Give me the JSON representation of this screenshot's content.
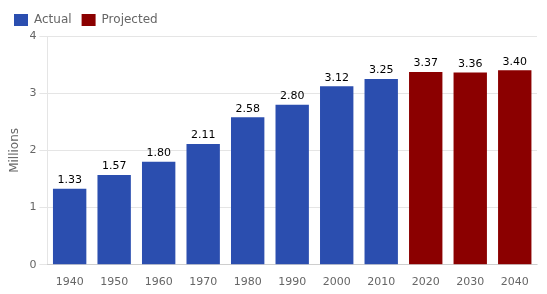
{
  "chart_data": {
    "type": "bar",
    "categories": [
      "1940",
      "1950",
      "1960",
      "1970",
      "1980",
      "1990",
      "2000",
      "2010",
      "2020",
      "2030",
      "2040"
    ],
    "series": [
      {
        "name": "Actual",
        "color": "#2B4EAF",
        "values": [
          1.33,
          1.57,
          1.8,
          2.11,
          2.58,
          2.8,
          3.12,
          3.25,
          null,
          null,
          null
        ],
        "value_labels": [
          "1.33",
          "1.57",
          "1.80",
          "2.11",
          "2.58",
          "2.80",
          "3.12",
          "3.25",
          null,
          null,
          null
        ]
      },
      {
        "name": "Projected",
        "color": "#8B0000",
        "values": [
          null,
          null,
          null,
          null,
          null,
          null,
          null,
          null,
          3.37,
          3.36,
          3.4
        ],
        "value_labels": [
          null,
          null,
          null,
          null,
          null,
          null,
          null,
          null,
          "3.37",
          "3.36",
          "3.40"
        ]
      }
    ],
    "ylabel": "Millions",
    "ylim": [
      0,
      4
    ],
    "yticks": [
      0,
      1,
      2,
      3,
      4
    ],
    "grid": true,
    "legend": "upper left",
    "data_labels": true
  }
}
